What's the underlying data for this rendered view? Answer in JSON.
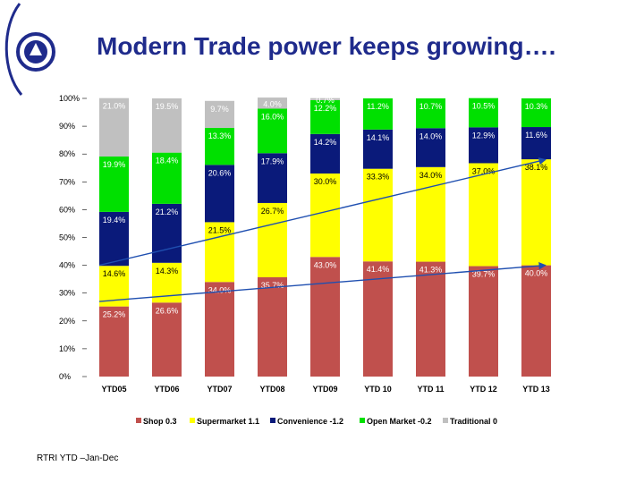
{
  "slide": {
    "title": "Modern Trade power keeps growing….",
    "source_note": "RTRI YTD –Jan-Dec"
  },
  "colors": {
    "title": "#1f2b8c",
    "Shop": "#c0504d",
    "Supermarket": "#ffff00",
    "Convenience": "#0a1a7a",
    "Open Market": "#00e000",
    "Traditional": "#c0c0c0",
    "trend": "#1f4fb0"
  },
  "chart_data": {
    "type": "bar",
    "stacked": true,
    "percent_stacked": true,
    "categories": [
      "YTD05",
      "YTD06",
      "YTD07",
      "YTD08",
      "YTD09",
      "YTD 10",
      "YTD 11",
      "YTD 12",
      "YTD 13"
    ],
    "ylim": [
      0,
      100
    ],
    "y_ticks": [
      "0%",
      "10%",
      "20%",
      "30%",
      "40%",
      "50%",
      "60%",
      "70%",
      "80%",
      "90%",
      "100%"
    ],
    "series": [
      {
        "name": "Shop",
        "values": [
          25.2,
          26.6,
          34.0,
          35.7,
          43.0,
          41.4,
          41.3,
          39.7,
          40.0
        ],
        "labels": [
          "25.2%",
          "26.6%",
          "34.0%",
          "35.7%",
          "43.0%",
          "41.4%",
          "41.3%",
          "39.7%",
          "40.0%"
        ]
      },
      {
        "name": "Supermarket",
        "values": [
          14.6,
          14.3,
          21.5,
          26.7,
          30.0,
          33.3,
          34.0,
          37.0,
          38.1
        ],
        "labels": [
          "14.6%",
          "14.3%",
          "21.5%",
          "26.7%",
          "30.0%",
          "33.3%",
          "34.0%",
          "37.0%",
          "38.1%"
        ]
      },
      {
        "name": "Convenience",
        "values": [
          19.4,
          21.2,
          20.6,
          17.9,
          14.2,
          14.1,
          14.0,
          12.9,
          11.6
        ],
        "labels": [
          "19.4%",
          "21.2%",
          "20.6%",
          "17.9%",
          "14.2%",
          "14.1%",
          "14.0%",
          "12.9%",
          "11.6%"
        ]
      },
      {
        "name": "Open Market",
        "values": [
          19.9,
          18.4,
          13.3,
          16.0,
          12.2,
          11.2,
          10.7,
          10.5,
          10.3
        ],
        "labels": [
          "19.9%",
          "18.4%",
          "13.3%",
          "16.0%",
          "12.2%",
          "11.2%",
          "10.7%",
          "10.5%",
          "10.3%"
        ]
      },
      {
        "name": "Traditional",
        "values": [
          21.0,
          19.5,
          9.7,
          4.0,
          0.7,
          0,
          0,
          0,
          0
        ],
        "labels": [
          "21.0%",
          "19.5%",
          "9.7%",
          "4.0%",
          "0.7%",
          "",
          "",
          "",
          ""
        ]
      }
    ],
    "legend": [
      {
        "series": "Shop",
        "label": "Shop 0.3"
      },
      {
        "series": "Supermarket",
        "label": "Supermarket 1.1"
      },
      {
        "series": "Convenience",
        "label": "Convenience -1.2"
      },
      {
        "series": "Open Market",
        "label": "Open Market -0.2"
      },
      {
        "series": "Traditional",
        "label": "Traditional 0"
      }
    ],
    "legend_position": "bottom",
    "trend_lines": [
      {
        "name": "modern-trade-trend",
        "from": {
          "category": "YTD05",
          "value": 40.0
        },
        "to": {
          "category": "YTD 13",
          "value": 78.0
        }
      },
      {
        "name": "shop-trend",
        "from": {
          "category": "YTD05",
          "value": 27.0
        },
        "to": {
          "category": "YTD 13",
          "value": 40.0
        }
      }
    ]
  }
}
